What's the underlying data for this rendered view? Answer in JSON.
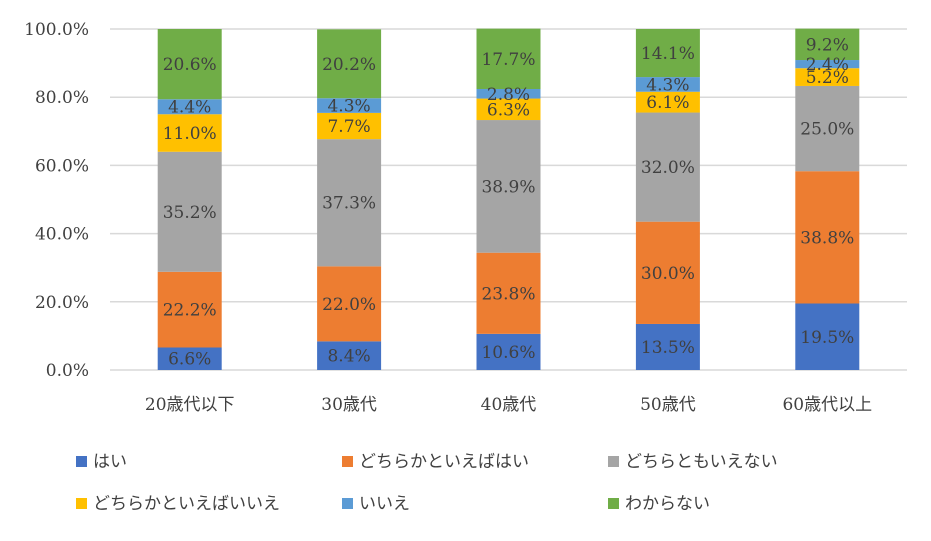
{
  "chart_data": {
    "type": "bar",
    "stacked": true,
    "title": "",
    "xlabel": "",
    "ylabel": "",
    "ylim": [
      0,
      100
    ],
    "yticks": [
      "0.0%",
      "20.0%",
      "40.0%",
      "60.0%",
      "80.0%",
      "100.0%"
    ],
    "grid": true,
    "legend_position": "bottom",
    "categories": [
      "20歳代以下",
      "30歳代",
      "40歳代",
      "50歳代",
      "60歳代以上"
    ],
    "series": [
      {
        "name": "はい",
        "color": "#4472c4",
        "values": [
          6.6,
          8.4,
          10.6,
          13.5,
          19.5
        ],
        "labels": [
          "6.6%",
          "8.4%",
          "10.6%",
          "13.5%",
          "19.5%"
        ]
      },
      {
        "name": "どちらかといえばはい",
        "color": "#ed7d31",
        "values": [
          22.2,
          22.0,
          23.8,
          30.0,
          38.8
        ],
        "labels": [
          "22.2%",
          "22.0%",
          "23.8%",
          "30.0%",
          "38.8%"
        ]
      },
      {
        "name": "どちらともいえない",
        "color": "#a5a5a5",
        "values": [
          35.2,
          37.3,
          38.9,
          32.0,
          25.0
        ],
        "labels": [
          "35.2%",
          "37.3%",
          "38.9%",
          "32.0%",
          "25.0%"
        ]
      },
      {
        "name": "どちらかといえばいいえ",
        "color": "#ffc000",
        "values": [
          11.0,
          7.7,
          6.3,
          6.1,
          5.2
        ],
        "labels": [
          "11.0%",
          "7.7%",
          "6.3%",
          "6.1%",
          "5.2%"
        ]
      },
      {
        "name": "いいえ",
        "color": "#5b9bd5",
        "values": [
          4.4,
          4.3,
          2.8,
          4.3,
          2.4
        ],
        "labels": [
          "4.4%",
          "4.3%",
          "2.8%",
          "4.3%",
          "2.4%"
        ]
      },
      {
        "name": "わからない",
        "color": "#70ad47",
        "values": [
          20.6,
          20.2,
          17.7,
          14.1,
          9.2
        ],
        "labels": [
          "20.6%",
          "20.2%",
          "17.7%",
          "14.1%",
          "9.2%"
        ]
      }
    ]
  }
}
